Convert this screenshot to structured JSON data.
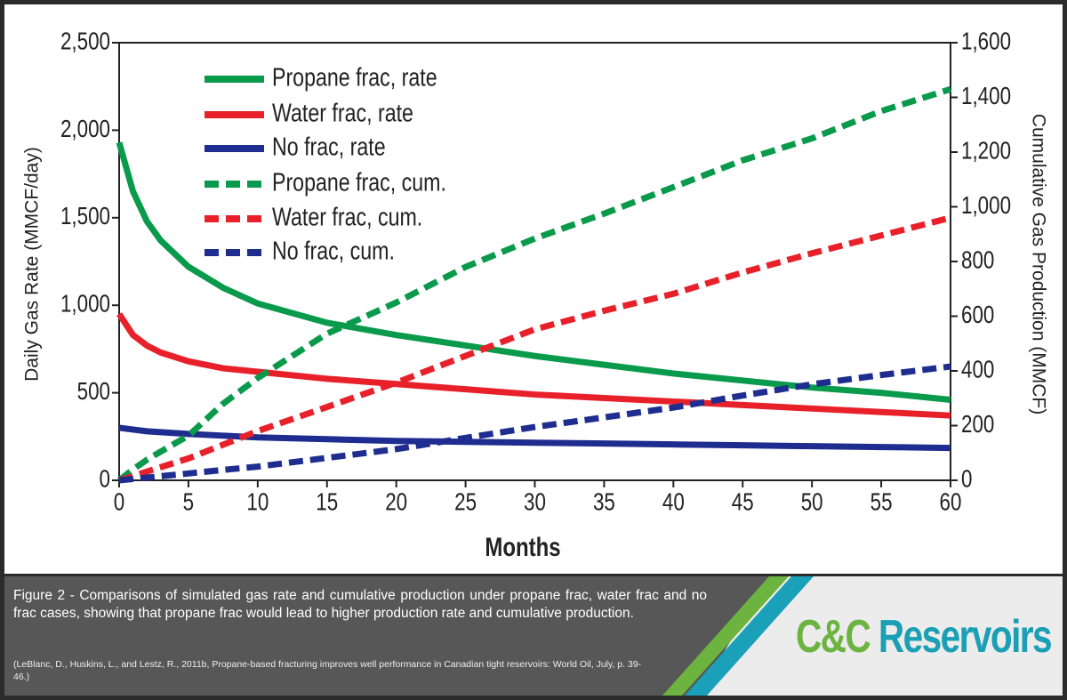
{
  "chart_data": {
    "type": "line",
    "xlabel": "Months",
    "ylabel": "Daily Gas Rate (MMCF/day)",
    "y2label": "Cumulative Gas Production (MMCF)",
    "x": [
      0,
      1,
      2,
      3,
      5,
      7.5,
      10,
      15,
      20,
      25,
      30,
      35,
      40,
      45,
      50,
      55,
      60
    ],
    "xlim": [
      0,
      60
    ],
    "xticks": [
      0,
      5,
      10,
      15,
      20,
      25,
      30,
      35,
      40,
      45,
      50,
      55,
      60
    ],
    "ylim": [
      0,
      2500
    ],
    "yticks": [
      0,
      500,
      {
        "value": 1000,
        "label": "1,000"
      },
      {
        "value": 1500,
        "label": "1,500"
      },
      {
        "value": 2000,
        "label": "2,000"
      },
      {
        "value": 2500,
        "label": "2,500"
      }
    ],
    "y2lim": [
      0,
      1600
    ],
    "y2ticks": [
      0,
      200,
      400,
      600,
      800,
      {
        "value": 1000,
        "label": "1,000"
      },
      {
        "value": 1200,
        "label": "1,200"
      },
      {
        "value": 1400,
        "label": "1,400"
      },
      {
        "value": 1600,
        "label": "1,600"
      }
    ],
    "series": [
      {
        "name": "Propane frac, rate",
        "color": "#0a9a4b",
        "style": "solid",
        "axis": "y",
        "values": [
          1930,
          1650,
          1480,
          1370,
          1220,
          1100,
          1010,
          900,
          830,
          770,
          710,
          660,
          610,
          570,
          530,
          500,
          460
        ]
      },
      {
        "name": "Water frac, rate",
        "color": "#e8202a",
        "style": "solid",
        "axis": "y",
        "values": [
          950,
          830,
          770,
          730,
          680,
          640,
          620,
          580,
          550,
          520,
          490,
          470,
          450,
          430,
          410,
          390,
          370
        ]
      },
      {
        "name": "No frac, rate",
        "color": "#1e2d8f",
        "style": "solid",
        "axis": "y",
        "values": [
          300,
          290,
          280,
          275,
          265,
          255,
          245,
          235,
          225,
          220,
          215,
          210,
          205,
          200,
          195,
          190,
          185
        ]
      },
      {
        "name": "Propane frac, cum.",
        "color": "#0a9a4b",
        "style": "dashed",
        "axis": "y2",
        "values": [
          0,
          40,
          75,
          105,
          163,
          280,
          374,
          536,
          650,
          780,
          884,
          975,
          1072,
          1170,
          1250,
          1350,
          1430
        ]
      },
      {
        "name": "Water frac, cum.",
        "color": "#e8202a",
        "style": "dashed",
        "axis": "y2",
        "values": [
          0,
          15,
          32,
          48,
          80,
          130,
          180,
          268,
          357,
          455,
          552,
          620,
          682,
          760,
          830,
          895,
          960
        ]
      },
      {
        "name": "No frac, cum.",
        "color": "#1e2d8f",
        "style": "dashed",
        "axis": "y2",
        "values": [
          0,
          5,
          10,
          15,
          25,
          38,
          50,
          82,
          114,
          155,
          195,
          230,
          266,
          310,
          351,
          385,
          416
        ]
      }
    ]
  },
  "caption": {
    "text": "Figure 2 - Comparisons of simulated gas rate and cumulative production under propane frac, water frac and no frac cases, showing that propane frac would lead to higher production rate and cumulative production.",
    "reference": "(LeBlanc, D., Huskins, L., and Lestz, R., 2011b, Propane-based fracturing improves well performance in Canadian tight reservoirs: World Oil, July, p. 39-46.)"
  },
  "logo": {
    "brand": "C&C",
    "name": "Reservoirs"
  }
}
